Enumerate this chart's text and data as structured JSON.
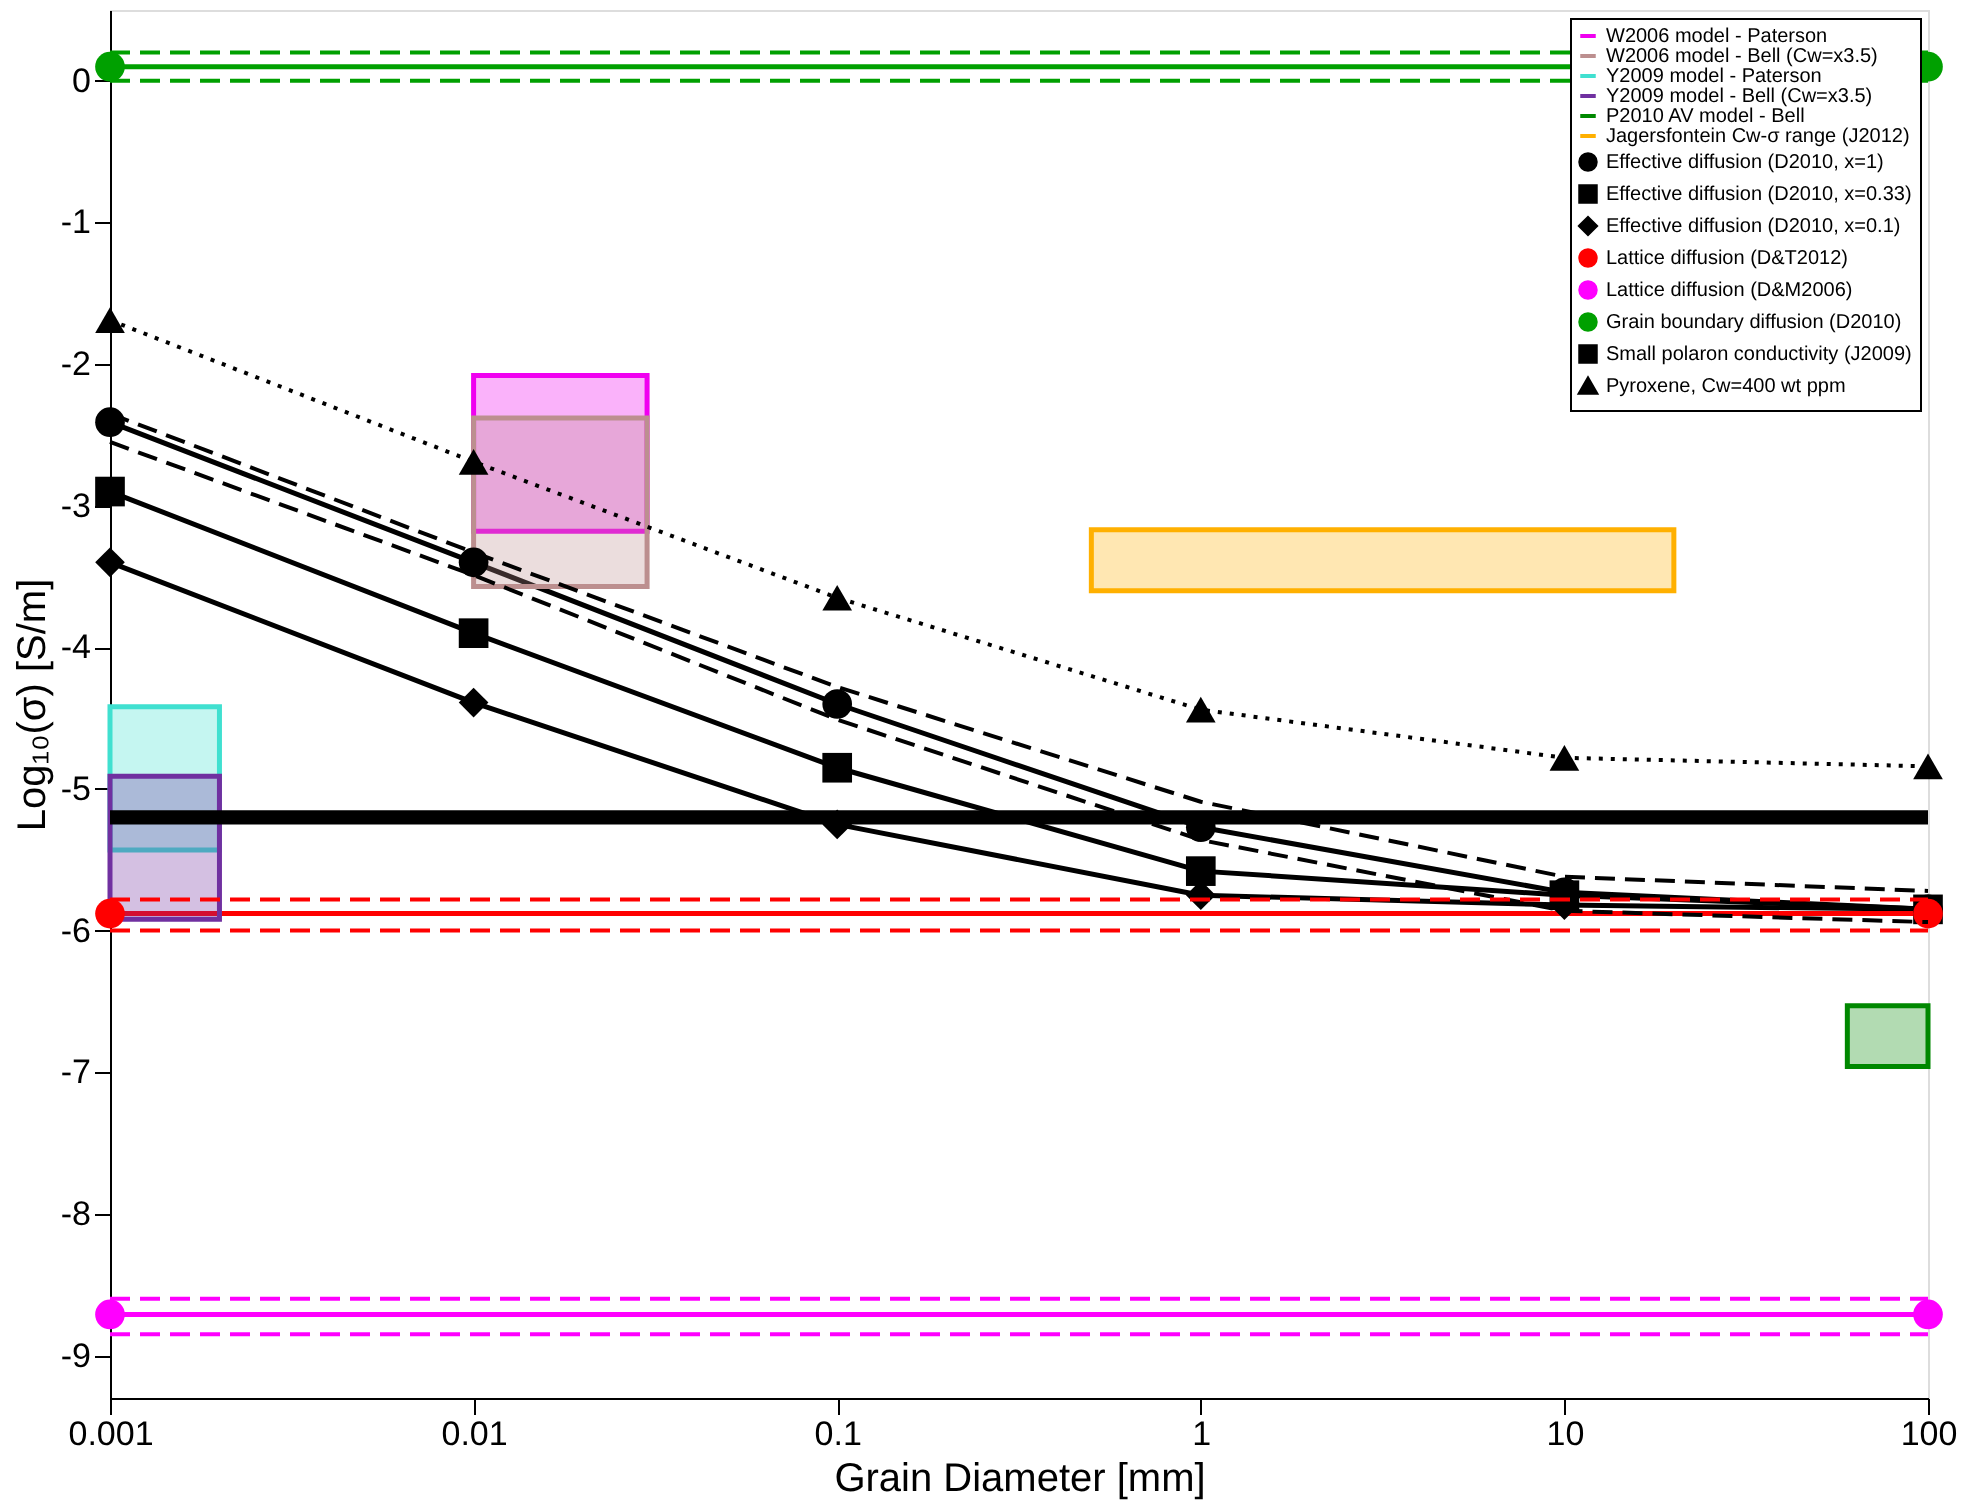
{
  "chart_data": {
    "type": "line",
    "xlabel": "Grain Diameter [mm]",
    "ylabel": "Log₁₀(σ) [S/m]",
    "log": "x",
    "xlim": [
      0.001,
      100
    ],
    "xticks": [
      0.001,
      0.01,
      0.1,
      1,
      10,
      100
    ],
    "ylim": [
      -9.3,
      0.5
    ],
    "yticks": [
      0,
      -1,
      -2,
      -3,
      -4,
      -5,
      -6,
      -7,
      -8,
      -9
    ],
    "grid": false,
    "legend": "top right",
    "bands": [
      {
        "axis": "y",
        "from": -5.25,
        "to": -5.15,
        "label": "Small polaron conductivity (J2009)",
        "color": "#000000"
      }
    ],
    "series": [
      {
        "name": "W2006 model - Paterson",
        "type": "line",
        "color": "#f000f0",
        "x": [
          0.01,
          0.03
        ],
        "values": [
          null,
          null
        ],
        "upper": [
          -2.08,
          -2.08
        ],
        "lower": [
          -3.18,
          -3.18
        ]
      },
      {
        "name": "W2006 model - Bell (Cw=x3.5)",
        "type": "line",
        "color": "#bc8f8f",
        "x": [
          0.01,
          0.03
        ],
        "values": [
          null,
          null
        ],
        "upper": [
          -2.38,
          -2.38
        ],
        "lower": [
          -3.57,
          -3.57
        ]
      },
      {
        "name": "Y2009 model - Paterson",
        "type": "line",
        "color": "#40e0d0",
        "x": [
          0.001,
          0.002
        ],
        "values": [
          null,
          null
        ],
        "upper": [
          -4.42,
          -4.42
        ],
        "lower": [
          -5.43,
          -5.43
        ]
      },
      {
        "name": "Y2009 model - Bell (Cw=x3.5)",
        "type": "line",
        "color": "#7030a0",
        "x": [
          0.001,
          0.002
        ],
        "values": [
          null,
          null
        ],
        "upper": [
          -4.91,
          -4.91
        ],
        "lower": [
          -5.92,
          -5.92
        ]
      },
      {
        "name": "P2010 AV model - Bell",
        "type": "line",
        "color": "#008800",
        "x": [
          60,
          100
        ],
        "values": [
          null,
          null
        ],
        "upper": [
          -6.53,
          -6.53
        ],
        "lower": [
          -6.96,
          -6.96
        ]
      },
      {
        "name": "Jagersfontein Cw-σ range (J2012)",
        "type": "line",
        "color": "#ffb000",
        "x": [
          0.5,
          20
        ],
        "values": [
          null,
          null
        ],
        "upper": [
          -3.17,
          -3.17
        ],
        "lower": [
          -3.6,
          -3.6
        ]
      },
      {
        "name": "Effective diffusion (D2010, x=1)",
        "type": "line",
        "color": "#000000",
        "marker": "circle",
        "line_style": "solid",
        "x": [
          0.001,
          0.01,
          0.1,
          1,
          10,
          100
        ],
        "values": [
          -2.41,
          -3.4,
          -4.4,
          -5.27,
          -5.73,
          -5.85
        ]
      },
      {
        "name": "Effective diffusion (D2010, x=0.33)",
        "type": "line",
        "color": "#000000",
        "marker": "square",
        "line_style": "solid",
        "x": [
          0.001,
          0.01,
          0.1,
          1,
          10,
          100
        ],
        "values": [
          -2.9,
          -3.9,
          -4.85,
          -5.58,
          -5.75,
          -5.85
        ]
      },
      {
        "name": "Effective diffusion (D2010, x=0.1)",
        "type": "line",
        "color": "#000000",
        "marker": "diamond",
        "line_style": "solid",
        "x": [
          0.001,
          0.01,
          0.1,
          1,
          10,
          100
        ],
        "values": [
          -3.4,
          -4.39,
          -5.25,
          -5.75,
          -5.82,
          -5.85
        ]
      },
      {
        "name": "Lattice diffusion (D&T2012)",
        "type": "line",
        "color": "#ff0000",
        "marker": "circle",
        "line_style": "solid",
        "x": [
          0.001,
          100
        ],
        "values": [
          -5.88,
          -5.88
        ]
      },
      {
        "name": "Lattice diffusion (D&M2006)",
        "type": "line",
        "color": "#ff00ff",
        "marker": "circle",
        "line_style": "solid",
        "x": [
          0.001,
          100
        ],
        "values": [
          -8.71,
          -8.71
        ]
      },
      {
        "name": "Grain boundary diffusion (D2010)",
        "type": "line",
        "color": "#00a000",
        "marker": "circle",
        "line_style": "solid",
        "x": [
          0.001,
          100
        ],
        "values": [
          0.1,
          0.1
        ]
      },
      {
        "name": "Pyroxene, Cw=400 wt ppm",
        "type": "line",
        "color": "#000000",
        "marker": "triangle",
        "line_style": "dotted",
        "x": [
          0.001,
          0.01,
          0.1,
          1,
          10,
          100
        ],
        "values": [
          -1.69,
          -2.69,
          -3.65,
          -4.44,
          -4.78,
          -4.84
        ]
      },
      {
        "type": "line",
        "color": "#000000",
        "line_style": "dashed",
        "x": [
          0.001,
          0.01,
          0.1,
          1,
          10,
          100
        ],
        "values": [
          -2.35,
          -3.33,
          -4.28,
          -5.09,
          -5.62,
          -5.72
        ]
      },
      {
        "type": "line",
        "color": "#000000",
        "line_style": "dashed",
        "x": [
          0.001,
          0.01,
          0.1,
          1,
          10,
          100
        ],
        "values": [
          -2.55,
          -3.49,
          -4.51,
          -5.36,
          -5.86,
          -5.94
        ]
      },
      {
        "type": "line",
        "color": "#ff0000",
        "line_style": "dashed",
        "x": [
          0.001,
          100
        ],
        "values": [
          -5.78,
          -5.78
        ]
      },
      {
        "type": "line",
        "color": "#ff0000",
        "line_style": "dashed",
        "x": [
          0.001,
          100
        ],
        "values": [
          -6.0,
          -6.0
        ]
      },
      {
        "type": "line",
        "color": "#ff00ff",
        "line_style": "dashed",
        "x": [
          0.001,
          100
        ],
        "values": [
          -8.6,
          -8.6
        ]
      },
      {
        "type": "line",
        "color": "#ff00ff",
        "line_style": "dashed",
        "x": [
          0.001,
          100
        ],
        "values": [
          -8.85,
          -8.85
        ]
      },
      {
        "type": "line",
        "color": "#00a000",
        "line_style": "dashed",
        "x": [
          0.001,
          100
        ],
        "values": [
          0.2,
          0.2
        ]
      },
      {
        "type": "line",
        "color": "#00a000",
        "line_style": "dashed",
        "x": [
          0.001,
          100
        ],
        "values": [
          0.0,
          0.0
        ]
      }
    ]
  }
}
